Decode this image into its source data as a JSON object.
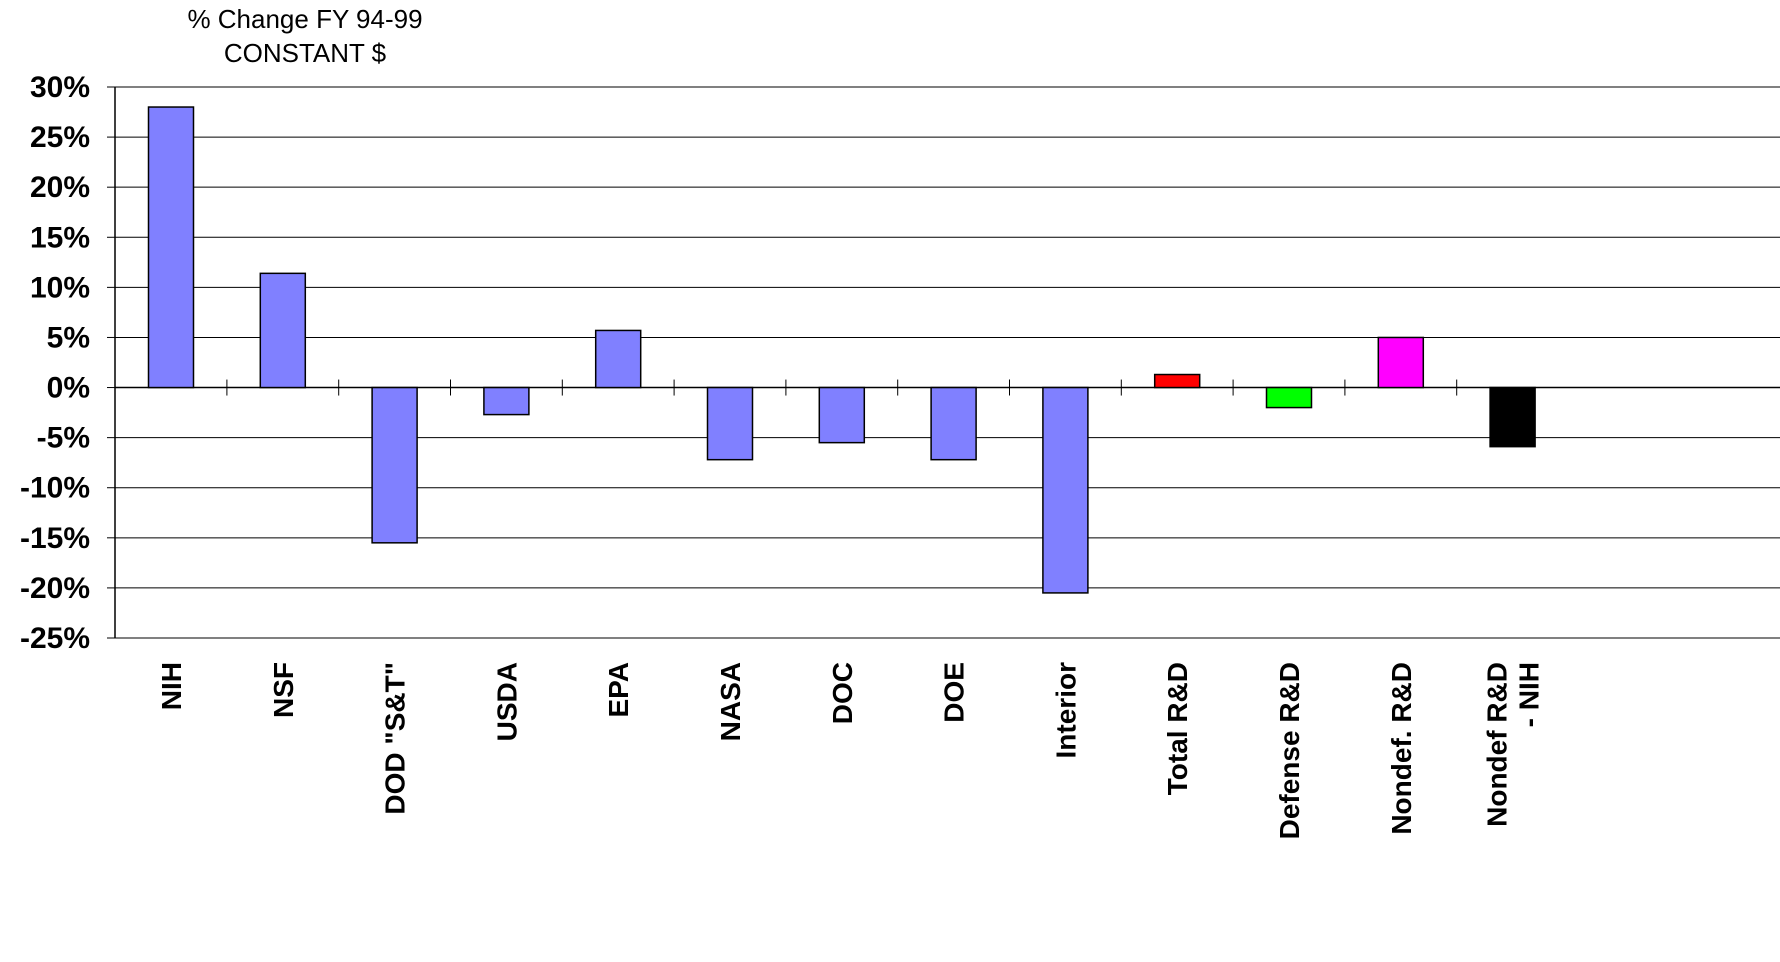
{
  "chart_data": {
    "type": "bar",
    "title": [
      "% Change FY 94-99",
      "CONSTANT $"
    ],
    "xlabel": "",
    "ylabel": "",
    "ylim": [
      -25,
      30
    ],
    "yticks": [
      30,
      25,
      20,
      15,
      10,
      5,
      0,
      -5,
      -10,
      -15,
      -20,
      -25
    ],
    "ytick_labels": [
      "30%",
      "25%",
      "20%",
      "15%",
      "10%",
      "5%",
      "0%",
      "-5%",
      "-10%",
      "-15%",
      "-20%",
      "-25%"
    ],
    "grid": true,
    "legend": "none",
    "categories": [
      [
        "NIH"
      ],
      [
        "NSF"
      ],
      [
        "DOD \"S&T\""
      ],
      [
        "USDA"
      ],
      [
        "EPA"
      ],
      [
        "NASA"
      ],
      [
        "DOC"
      ],
      [
        "DOE"
      ],
      [
        "Interior"
      ],
      [
        "Total R&D"
      ],
      [
        "Defense R&D"
      ],
      [
        "Nondef. R&D"
      ],
      [
        "Nondef R&D",
        "- NIH"
      ]
    ],
    "values": [
      28.0,
      11.4,
      -15.5,
      -2.7,
      5.7,
      -7.2,
      -5.5,
      -7.2,
      -20.5,
      1.3,
      -2.0,
      5.0,
      -5.9
    ],
    "colors": [
      "#8080ff",
      "#8080ff",
      "#8080ff",
      "#8080ff",
      "#8080ff",
      "#8080ff",
      "#8080ff",
      "#8080ff",
      "#8080ff",
      "#ff0000",
      "#00ff00",
      "#ff00ff",
      "#000000"
    ]
  }
}
